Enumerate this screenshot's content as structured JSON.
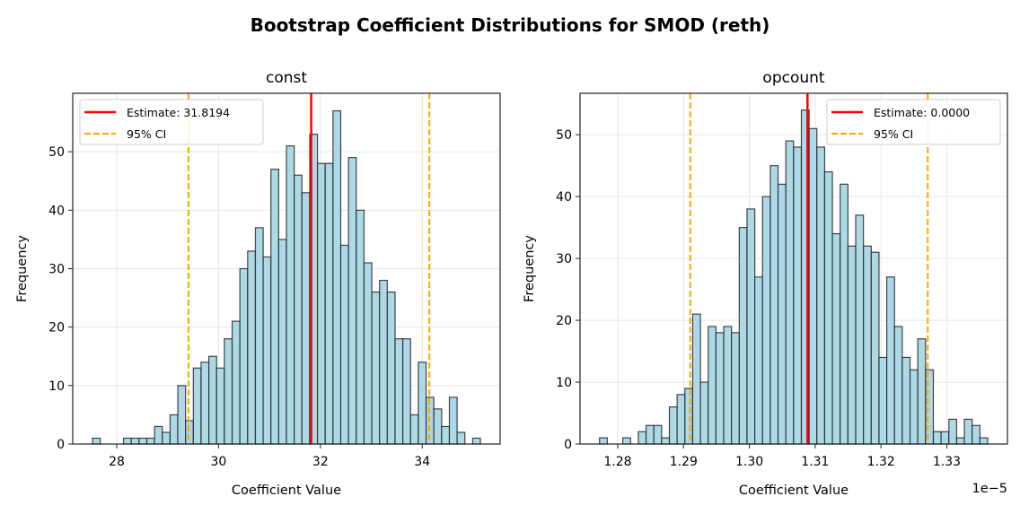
{
  "figure_title": "Bootstrap Coefficient Distributions for SMOD (reth)",
  "colors": {
    "bar_fill": "#add8e6",
    "bar_edge": "#262626",
    "estimate": "#ff0000",
    "ci": "#ffa500",
    "grid": "#e6e6e6"
  },
  "chart_data": [
    {
      "type": "bar",
      "title": "const",
      "xlabel": "Coefficient Value",
      "ylabel": "Frequency",
      "xlim": [
        27.136,
        35.53
      ],
      "ylim": [
        0,
        60
      ],
      "xticks": [
        28,
        30,
        32,
        34
      ],
      "xtick_labels": [
        "28",
        "30",
        "32",
        "34"
      ],
      "yticks": [
        0,
        10,
        20,
        30,
        40,
        50
      ],
      "ytick_labels": [
        "0",
        "10",
        "20",
        "30",
        "40",
        "50"
      ],
      "offset_label": "",
      "grid": true,
      "legend_position": "upper-left",
      "bin_start": 27.524,
      "bin_end": 35.143,
      "counts": [
        1,
        0,
        0,
        0,
        1,
        1,
        1,
        1,
        3,
        2,
        5,
        10,
        4,
        13,
        14,
        15,
        13,
        18,
        21,
        30,
        33,
        37,
        32,
        47,
        35,
        51,
        46,
        43,
        53,
        48,
        48,
        57,
        34,
        49,
        40,
        31,
        26,
        28,
        26,
        18,
        18,
        5,
        14,
        8,
        6,
        3,
        8,
        2,
        0,
        1
      ],
      "estimate": 31.8194,
      "ci": [
        29.41,
        34.14
      ],
      "legend": [
        "Estimate: 31.8194",
        "95% CI"
      ]
    },
    {
      "type": "bar",
      "title": "opcount",
      "xlabel": "Coefficient Value",
      "ylabel": "Frequency",
      "xlim": [
        1.27427,
        1.33921
      ],
      "ylim": [
        0,
        56.7
      ],
      "xticks": [
        1.28,
        1.29,
        1.3,
        1.31,
        1.32,
        1.33
      ],
      "xtick_labels": [
        "1.28",
        "1.29",
        "1.30",
        "1.31",
        "1.32",
        "1.33"
      ],
      "yticks": [
        0,
        10,
        20,
        30,
        40,
        50
      ],
      "ytick_labels": [
        "0",
        "10",
        "20",
        "30",
        "40",
        "50"
      ],
      "offset_label": "1e−5",
      "grid": true,
      "legend_position": "upper-right",
      "bin_start": 1.27723,
      "bin_end": 1.33621,
      "counts": [
        1,
        0,
        0,
        1,
        0,
        2,
        3,
        3,
        1,
        6,
        8,
        9,
        21,
        10,
        19,
        18,
        19,
        18,
        35,
        38,
        27,
        40,
        45,
        42,
        49,
        48,
        54,
        51,
        48,
        44,
        34,
        42,
        32,
        37,
        32,
        31,
        14,
        27,
        19,
        14,
        12,
        17,
        12,
        2,
        2,
        4,
        1,
        4,
        3,
        1
      ],
      "estimate": 1.30883,
      "ci": [
        1.29102,
        1.32711
      ],
      "legend": [
        "Estimate: 0.0000",
        "95% CI"
      ]
    }
  ]
}
